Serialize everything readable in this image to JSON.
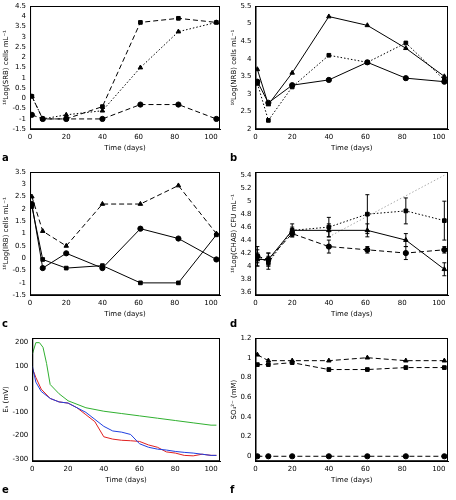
{
  "chart_data": [
    {
      "type": "line",
      "title": "a",
      "x_label": "Time (days)",
      "y_label": "¹⁰Log(SRB) cells mL⁻¹",
      "grid": false,
      "x": [
        1,
        7,
        20,
        40,
        61,
        82,
        103
      ],
      "xlim": [
        0,
        105
      ],
      "xticks": [
        0,
        20,
        40,
        60,
        80,
        100
      ],
      "ylim": [
        -1.5,
        4.5
      ],
      "yticks": [
        -1.5,
        -1,
        -0.5,
        0,
        0.5,
        1,
        1.5,
        2,
        2.5,
        3,
        3.5,
        4,
        4.5
      ],
      "series": [
        {
          "color": "#000000",
          "marker": "square",
          "line_style": "dashed",
          "values": [
            0.1,
            -1.0,
            -1.0,
            -0.4,
            3.7,
            3.9,
            3.7
          ]
        },
        {
          "color": "#000000",
          "marker": "triangle",
          "line_style": "dotted",
          "values": [
            0.1,
            -1.0,
            -0.8,
            -0.6,
            1.5,
            3.25,
            3.7
          ]
        },
        {
          "color": "#000000",
          "marker": "circle",
          "line_style": "dashed",
          "values": [
            -0.8,
            -1.0,
            -1.0,
            -1.0,
            -0.3,
            -0.3,
            -1.0
          ]
        }
      ]
    },
    {
      "type": "line",
      "title": "b",
      "x_label": "Time (days)",
      "y_label": "¹⁰Log(NRB) cells mL⁻¹",
      "grid": false,
      "x": [
        1,
        7,
        20,
        40,
        61,
        82,
        103
      ],
      "xlim": [
        0,
        105
      ],
      "xticks": [
        0,
        20,
        40,
        60,
        80,
        100
      ],
      "ylim": [
        2,
        5.5
      ],
      "yticks": [
        2,
        2.5,
        3,
        3.5,
        4,
        4.5,
        5,
        5.5
      ],
      "series": [
        {
          "color": "#000000",
          "marker": "triangle",
          "line_style": "solid",
          "values": [
            3.7,
            2.7,
            3.6,
            5.2,
            4.95,
            4.3,
            3.5
          ]
        },
        {
          "color": "#000000",
          "marker": "square",
          "line_style": "dotted",
          "values": [
            3.3,
            2.25,
            3.2,
            4.1,
            3.9,
            4.45,
            3.4
          ]
        },
        {
          "color": "#000000",
          "marker": "circle",
          "line_style": "solid",
          "values": [
            3.35,
            2.75,
            3.25,
            3.4,
            3.9,
            3.45,
            3.35
          ]
        }
      ]
    },
    {
      "type": "line",
      "title": "c",
      "x_label": "Time (days)",
      "y_label": "¹⁰Log(IRB) cells mL⁻¹",
      "grid": false,
      "x": [
        1,
        7,
        20,
        40,
        61,
        82,
        103
      ],
      "xlim": [
        0,
        105
      ],
      "xticks": [
        0,
        20,
        40,
        60,
        80,
        100
      ],
      "ylim": [
        -1.5,
        3.5
      ],
      "yticks": [
        -1.5,
        -1,
        -0.5,
        0,
        0.5,
        1,
        1.5,
        2,
        2.5,
        3,
        3.5
      ],
      "series": [
        {
          "color": "#000000",
          "marker": "triangle",
          "line_style": "dashed",
          "values": [
            2.5,
            1.1,
            0.5,
            2.2,
            2.2,
            2.95,
            1.0
          ]
        },
        {
          "color": "#000000",
          "marker": "circle",
          "line_style": "solid",
          "values": [
            2.2,
            -0.4,
            0.2,
            -0.4,
            1.2,
            0.8,
            -0.05
          ]
        },
        {
          "color": "#000000",
          "marker": "square",
          "line_style": "solid",
          "values": [
            2.1,
            -0.05,
            -0.4,
            -0.3,
            -1.0,
            -1.0,
            0.95
          ]
        }
      ]
    },
    {
      "type": "line",
      "title": "d",
      "x_label": "Time (days)",
      "y_label": "¹⁰Log(CHAB) CFU mL⁻¹",
      "grid": false,
      "x": [
        1,
        7,
        20,
        40,
        61,
        82,
        103
      ],
      "xlim": [
        0,
        105
      ],
      "xticks": [
        0,
        20,
        40,
        60,
        80,
        100
      ],
      "ylim": [
        3.55,
        5.45
      ],
      "yticks": [
        3.6,
        3.8,
        4,
        4.2,
        4.4,
        4.6,
        4.8,
        5,
        5.2,
        5.4
      ],
      "series": [
        {
          "color": "#000000",
          "marker": "square",
          "line_style": "dotted",
          "values": [
            4.15,
            4.05,
            4.55,
            4.6,
            4.8,
            4.85,
            4.7
          ],
          "errors": [
            0.15,
            0.1,
            0.1,
            0.15,
            0.3,
            0.2,
            0.3
          ]
        },
        {
          "color": "#000000",
          "marker": "triangle",
          "line_style": "solid",
          "values": [
            4.1,
            4.1,
            4.55,
            4.55,
            4.55,
            4.4,
            3.95
          ],
          "errors": [
            0.1,
            0.1,
            0.05,
            0.1,
            0.1,
            0.1,
            0.1
          ]
        },
        {
          "color": "#000000",
          "marker": "circle",
          "line_style": "dashed",
          "values": [
            4.15,
            4.1,
            4.5,
            4.3,
            4.25,
            4.2,
            4.25
          ],
          "errors": [
            0.1,
            0.1,
            0.05,
            0.1,
            0.05,
            0.1,
            0.05
          ]
        },
        {
          "color": "#aaaaaa",
          "marker": "none",
          "line_style": "dotted",
          "x": [
            40,
            103
          ],
          "values": [
            4.45,
            5.4
          ]
        }
      ]
    },
    {
      "type": "line",
      "title": "e",
      "x_label": "Time (days)",
      "y_label": "Eₕ (mV)",
      "grid": false,
      "xlim": [
        0,
        105
      ],
      "xticks": [
        0,
        20,
        40,
        60,
        80,
        100
      ],
      "ylim": [
        -310,
        220
      ],
      "yticks": [
        -300,
        -200,
        -100,
        0,
        100,
        200
      ],
      "series": [
        {
          "color": "#30b030",
          "marker": "none",
          "line_style": "solid",
          "x": [
            0,
            2,
            4,
            6,
            8,
            10,
            15,
            20,
            30,
            40,
            50,
            60,
            70,
            80,
            90,
            100,
            103
          ],
          "values": [
            150,
            200,
            200,
            180,
            110,
            20,
            -20,
            -50,
            -80,
            -95,
            -105,
            -115,
            -125,
            -135,
            -145,
            -155,
            -155
          ]
        },
        {
          "color": "#2040e0",
          "marker": "none",
          "line_style": "solid",
          "x": [
            0,
            2,
            5,
            10,
            15,
            20,
            25,
            30,
            35,
            40,
            45,
            50,
            55,
            60,
            65,
            70,
            75,
            80,
            85,
            90,
            95,
            100,
            103
          ],
          "values": [
            100,
            30,
            -10,
            -40,
            -55,
            -60,
            -80,
            -100,
            -130,
            -160,
            -180,
            -185,
            -195,
            -235,
            -250,
            -258,
            -262,
            -268,
            -272,
            -275,
            -280,
            -285,
            -285
          ]
        },
        {
          "color": "#e02020",
          "marker": "none",
          "line_style": "solid",
          "x": [
            0,
            2,
            5,
            10,
            15,
            20,
            25,
            30,
            35,
            40,
            45,
            50,
            55,
            60,
            65,
            70,
            75,
            80,
            85,
            90,
            95,
            100,
            103
          ],
          "values": [
            90,
            50,
            0,
            -40,
            -55,
            -60,
            -80,
            -110,
            -140,
            -205,
            -215,
            -220,
            -222,
            -225,
            -240,
            -250,
            -270,
            -275,
            -285,
            -287,
            -280,
            -285,
            -285
          ]
        }
      ]
    },
    {
      "type": "line",
      "title": "f",
      "x_label": "Time (days)",
      "y_label": "SO₄²⁻ (mM)",
      "grid": false,
      "x": [
        1,
        7,
        20,
        40,
        61,
        82,
        103
      ],
      "xlim": [
        0,
        105
      ],
      "xticks": [
        0,
        20,
        40,
        60,
        80,
        100
      ],
      "ylim": [
        -0.05,
        1.2
      ],
      "yticks": [
        0,
        0.2,
        0.4,
        0.6,
        0.8,
        1,
        1.2
      ],
      "series": [
        {
          "color": "#000000",
          "marker": "triangle",
          "line_style": "dashed",
          "values": [
            1.03,
            0.97,
            0.97,
            0.97,
            1.0,
            0.97,
            0.97
          ]
        },
        {
          "color": "#000000",
          "marker": "square",
          "line_style": "dashed",
          "values": [
            0.93,
            0.93,
            0.95,
            0.88,
            0.88,
            0.9,
            0.9
          ]
        },
        {
          "color": "#000000",
          "marker": "circle",
          "line_style": "dashed",
          "values": [
            0,
            0,
            0,
            0,
            0,
            0,
            0
          ]
        }
      ]
    }
  ]
}
